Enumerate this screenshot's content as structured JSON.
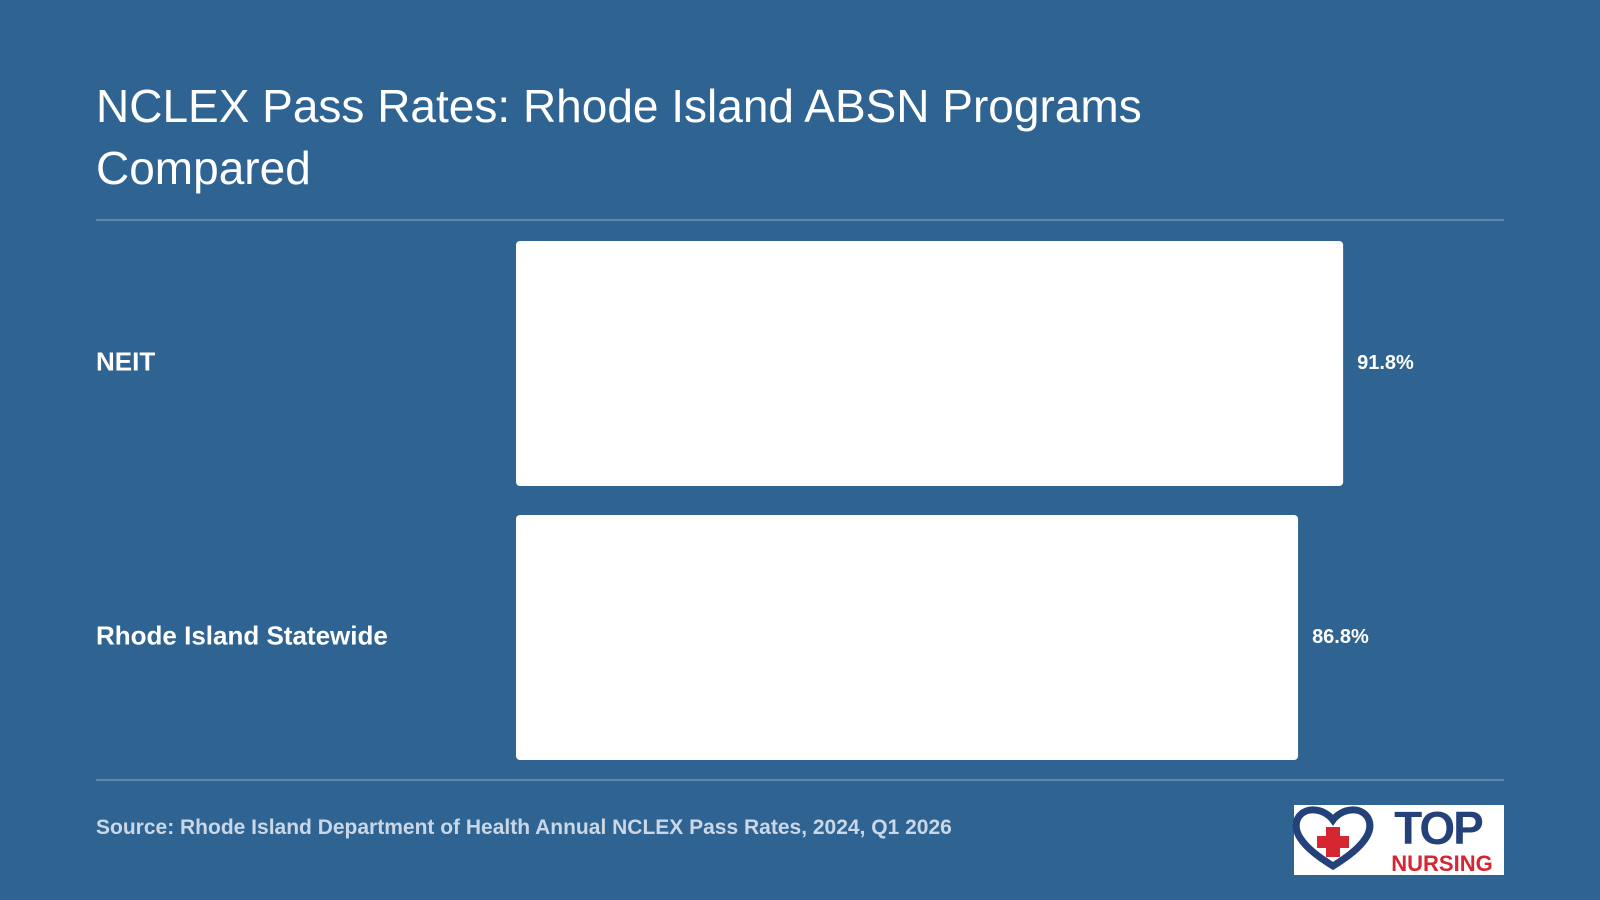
{
  "chart_data": {
    "type": "bar",
    "orientation": "horizontal",
    "title": "NCLEX Pass Rates: Rhode Island ABSN Programs Compared",
    "categories": [
      "NEIT",
      "Rhode Island Statewide"
    ],
    "values": [
      91.8,
      86.8
    ],
    "value_labels": [
      "91.8%",
      "86.8%"
    ],
    "color": "#ffffff",
    "xlim": [
      0,
      100
    ],
    "source": "Source: Rhode Island Department of Health Annual NCLEX Pass Rates, 2024, Q1 2026"
  },
  "logo": {
    "top": "TOP",
    "bottom": "NURSING"
  }
}
